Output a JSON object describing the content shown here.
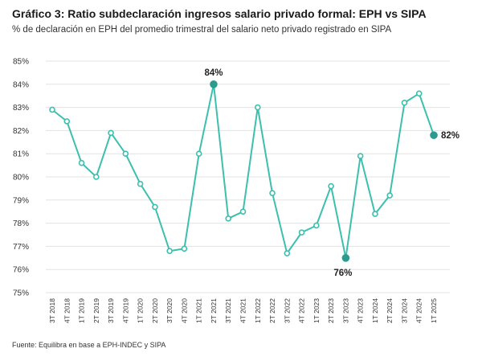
{
  "header": {
    "title": "Gráfico 3: Ratio subdeclaración ingresos salario privado formal: EPH vs SIPA",
    "subtitle": "% de declaración en EPH del promedio trimestral del salario neto privado registrado en SIPA"
  },
  "footer": {
    "source": "Fuente: Equilibra en base a EPH-INDEC y SIPA"
  },
  "colors": {
    "line": "#3dbfae",
    "highlight": "#2a9b8e",
    "grid": "#e3e3e3"
  },
  "chart_data": {
    "type": "line",
    "title": "Gráfico 3: Ratio subdeclaración ingresos salario privado formal: EPH vs SIPA",
    "subtitle": "% de declaración en EPH del promedio trimestral del salario neto privado registrado en SIPA",
    "ylim": [
      75,
      85
    ],
    "yticks": [
      "75%",
      "76%",
      "77%",
      "78%",
      "79%",
      "80%",
      "81%",
      "82%",
      "83%",
      "84%",
      "85%"
    ],
    "grid": "horizontal",
    "categories": [
      "3T 2018",
      "4T 2018",
      "1T 2019",
      "2T 2019",
      "3T 2019",
      "4T 2019",
      "1T 2020",
      "2T 2020",
      "3T 2020",
      "4T 2020",
      "1T 2021",
      "2T 2021",
      "3T 2021",
      "4T 2021",
      "1T 2022",
      "2T 2022",
      "3T 2022",
      "4T 2022",
      "1T 2023",
      "2T 2023",
      "3T 2023",
      "4T 2023",
      "1T 2024",
      "2T 2024",
      "3T 2024",
      "4T 2024",
      "1T 2025"
    ],
    "series": [
      {
        "values": [
          82.9,
          82.4,
          80.6,
          80.0,
          81.9,
          81.0,
          79.7,
          78.7,
          76.8,
          76.9,
          81.0,
          84.0,
          78.2,
          78.5,
          83.0,
          79.3,
          76.7,
          77.6,
          77.9,
          79.6,
          76.5,
          80.9,
          78.4,
          79.2,
          83.2,
          83.6,
          81.8
        ]
      }
    ],
    "annotations": [
      {
        "label": "84%",
        "index": 11,
        "position": "above"
      },
      {
        "label": "76%",
        "index": 20,
        "position": "below"
      },
      {
        "label": "82%",
        "index": 26,
        "position": "right"
      }
    ]
  }
}
